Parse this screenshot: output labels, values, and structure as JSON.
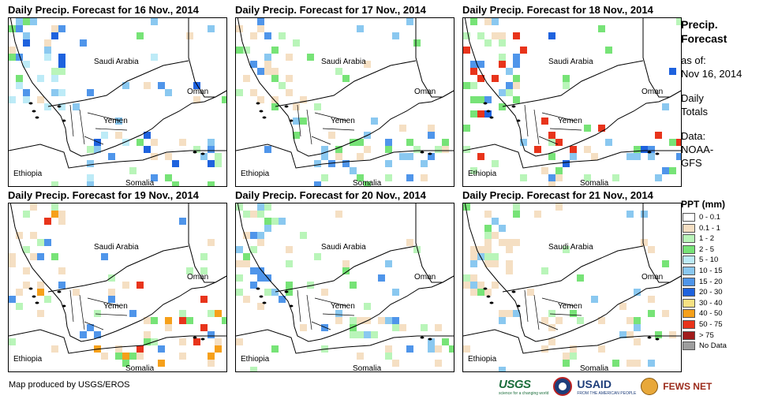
{
  "panels": [
    {
      "title": "Daily Precip. Forecast for 16 Nov., 2014"
    },
    {
      "title": "Daily Precip. Forecast for 17 Nov., 2014"
    },
    {
      "title": "Daily Precip. Forecast for 18 Nov., 2014"
    },
    {
      "title": "Daily Precip. Forecast for 19 Nov., 2014"
    },
    {
      "title": "Daily Precip. Forecast for 20 Nov., 2014"
    },
    {
      "title": "Daily Precip. Forecast for 21 Nov., 2014"
    }
  ],
  "map_labels": {
    "saudi": "Saudi Arabia",
    "oman": "Oman",
    "yemen": "Yemen",
    "ethiopia": "Ethiopia",
    "somalia": "Somalia"
  },
  "legend": {
    "title_line1": "Precip.",
    "title_line2": "Forecast",
    "as_of_label": "as of:",
    "as_of_date": "Nov 16, 2014",
    "daily_line1": "Daily",
    "daily_line2": "Totals",
    "data_line1": "Data:",
    "data_line2": "NOAA-",
    "data_line3": "GFS",
    "ppt_title": "PPT (mm)",
    "classes": [
      {
        "label": "0 - 0.1",
        "color": "#ffffff"
      },
      {
        "label": "0.1 - 1",
        "color": "#f5dfc3"
      },
      {
        "label": "1 - 2",
        "color": "#b9f5b9"
      },
      {
        "label": "2 - 5",
        "color": "#77e377"
      },
      {
        "label": "5 - 10",
        "color": "#bdebf7"
      },
      {
        "label": "10 - 15",
        "color": "#8ac8f0"
      },
      {
        "label": "15 - 20",
        "color": "#4f95ea"
      },
      {
        "label": "20 - 30",
        "color": "#1e62de"
      },
      {
        "label": "30 - 40",
        "color": "#f7e183"
      },
      {
        "label": "40 - 50",
        "color": "#f6a01a"
      },
      {
        "label": "50 - 75",
        "color": "#e8341b"
      },
      {
        "label": "> 75",
        "color": "#a11b1b"
      },
      {
        "label": "No Data",
        "color": "#9e9e9e"
      }
    ]
  },
  "credit": "Map produced by USGS/EROS",
  "logos": {
    "usgs": "USGS",
    "usgs_tagline": "science for a changing world",
    "usaid": "USAID",
    "usaid_tagline": "FROM THE AMERICAN PEOPLE",
    "fews": "FEWS NET"
  }
}
